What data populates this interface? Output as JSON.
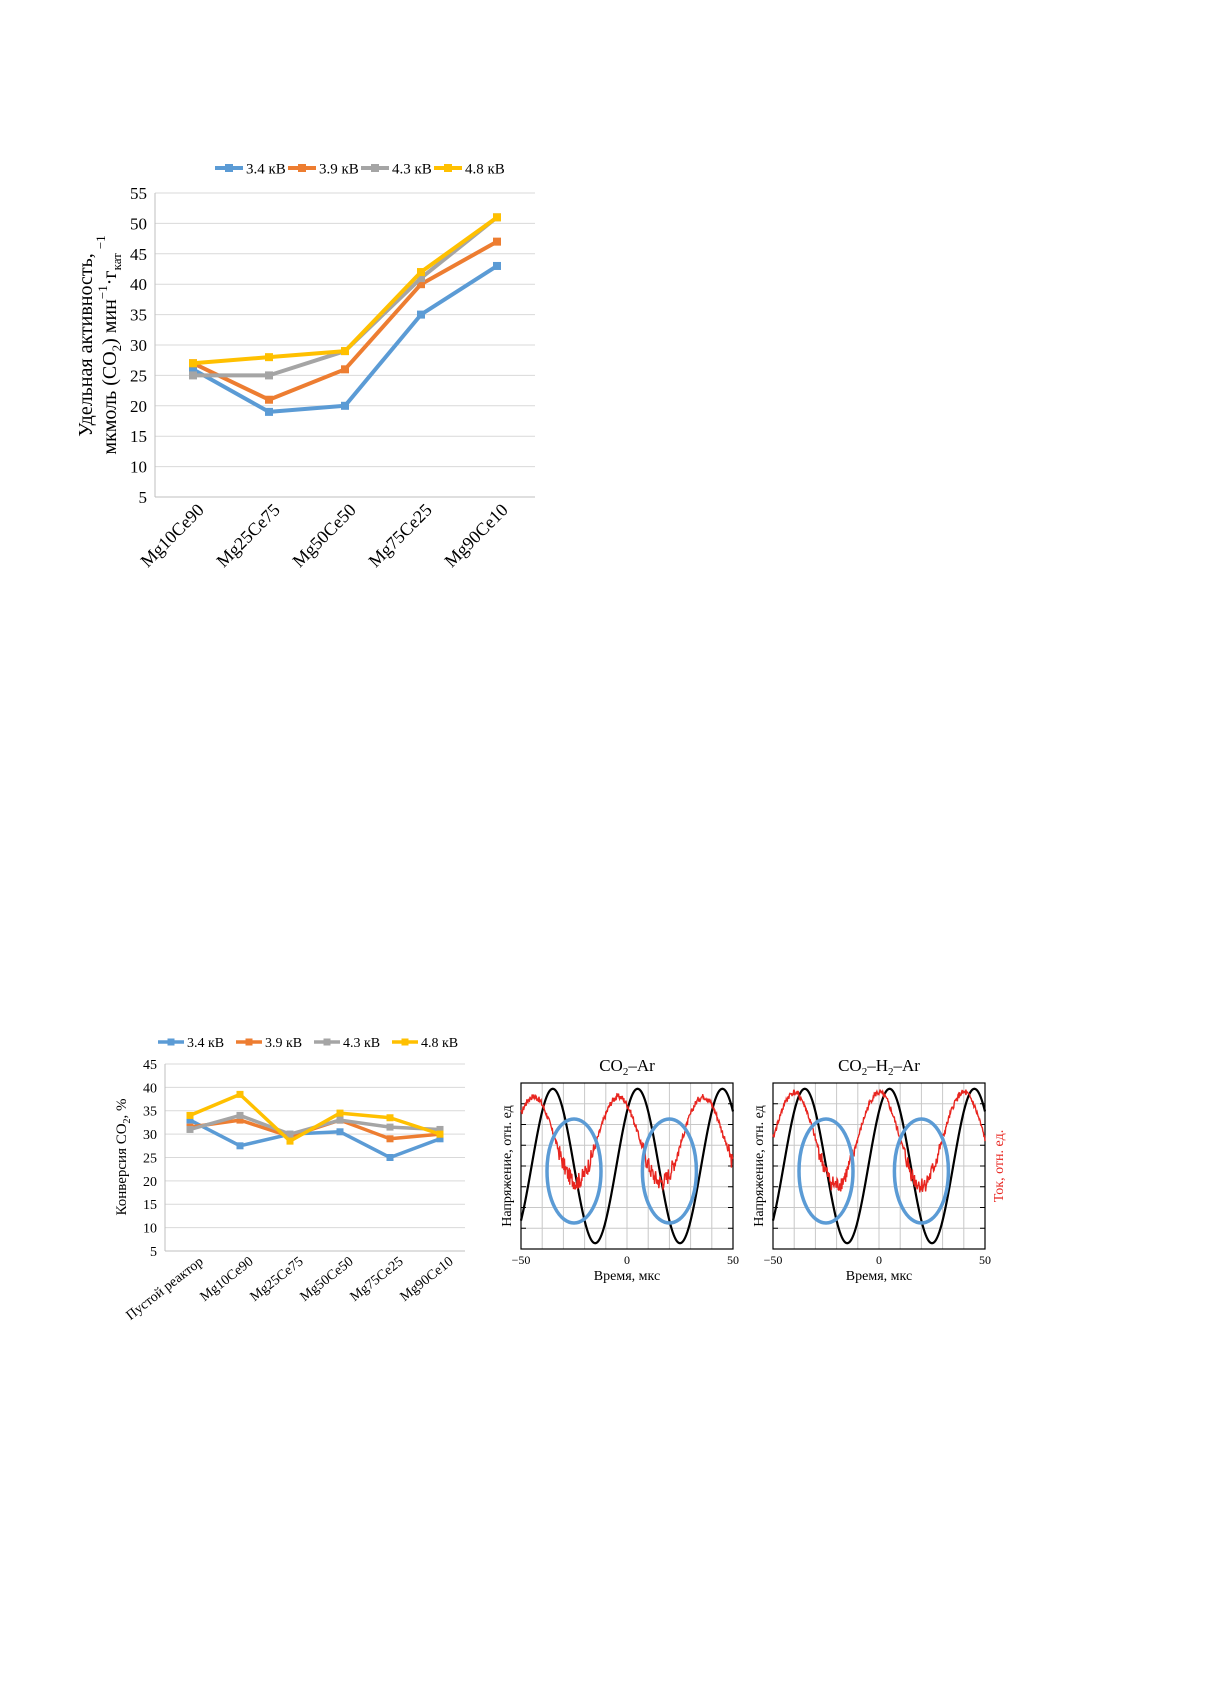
{
  "chart_data": [
    {
      "id": "activity",
      "type": "line",
      "title": "",
      "xlabel": "",
      "ylabel_line1": "Удельная активность,",
      "ylabel_line2_pre": "мкмоль (CO",
      "ylabel_line2_sub": "2",
      "ylabel_line2_post": ") мин",
      "ylabel_sup1": "−1",
      "ylabel_mid": "·г",
      "ylabel_sub2": "кат",
      "ylabel_sup2": "−1",
      "ylim": [
        5,
        55
      ],
      "yticks": [
        5,
        10,
        15,
        20,
        25,
        30,
        35,
        40,
        45,
        50,
        55
      ],
      "grid": true,
      "legend_position": "top",
      "categories": [
        "Mg10Ce90",
        "Mg25Ce75",
        "Mg50Ce50",
        "Mg75Ce25",
        "Mg90Ce10"
      ],
      "series": [
        {
          "name": "3.4 кВ",
          "color": "#5b9bd5",
          "values": [
            26,
            19,
            20,
            35,
            43
          ]
        },
        {
          "name": "3.9 кВ",
          "color": "#ed7d31",
          "values": [
            27,
            21,
            26,
            40,
            47
          ]
        },
        {
          "name": "4.3 кВ",
          "color": "#a5a5a5",
          "values": [
            25,
            25,
            29,
            41,
            51
          ]
        },
        {
          "name": "4.8 кВ",
          "color": "#ffc000",
          "values": [
            27,
            28,
            29,
            42,
            51
          ]
        }
      ]
    },
    {
      "id": "conversion",
      "type": "line",
      "title": "",
      "xlabel": "",
      "ylabel_pre": "Конверсия CO",
      "ylabel_sub": "2",
      "ylabel_post": ", %",
      "ylim": [
        5,
        45
      ],
      "yticks": [
        5,
        10,
        15,
        20,
        25,
        30,
        35,
        40,
        45
      ],
      "grid": true,
      "legend_position": "top",
      "categories": [
        "Пустой реактор",
        "Mg10Ce90",
        "Mg25Ce75",
        "Mg50Ce50",
        "Mg75Ce25",
        "Mg90Ce10"
      ],
      "series": [
        {
          "name": "3.4 кВ",
          "color": "#5b9bd5",
          "values": [
            33,
            27.5,
            30,
            30.5,
            25,
            29
          ]
        },
        {
          "name": "3.9 кВ",
          "color": "#ed7d31",
          "values": [
            31.5,
            33,
            29.5,
            33,
            29,
            30
          ]
        },
        {
          "name": "4.3 кВ",
          "color": "#a5a5a5",
          "values": [
            31,
            34,
            30,
            33,
            31.5,
            31
          ]
        },
        {
          "name": "4.8 кВ",
          "color": "#ffc000",
          "values": [
            34,
            38.5,
            28.5,
            34.5,
            33.5,
            30
          ]
        }
      ]
    },
    {
      "id": "osc_co2_ar",
      "type": "line",
      "title_pre": "CO",
      "title_sub": "2",
      "title_post": "–Ar",
      "xlabel": "Время, мкс",
      "ylabel_left": "Напряжение, отн. ед",
      "xlim": [
        -50,
        50
      ],
      "xticks": [
        -50,
        0,
        50
      ],
      "grid": true,
      "series": [
        {
          "name": "voltage",
          "color": "#000000",
          "period": 40,
          "phase": -35,
          "amplitude": 1.0
        },
        {
          "name": "current",
          "color": "#e8251f",
          "period": 40,
          "phase": -44,
          "amplitude": 0.55,
          "noisy_minimum": true
        }
      ],
      "highlights": [
        {
          "x": -25,
          "color": "#5b9bd5"
        },
        {
          "x": 20,
          "color": "#5b9bd5"
        }
      ]
    },
    {
      "id": "osc_co2_h2_ar",
      "type": "line",
      "title_pre": "CO",
      "title_sub1": "2",
      "title_mid": "–H",
      "title_sub2": "2",
      "title_post": "–Ar",
      "xlabel": "Время, мкс",
      "ylabel_left": "Напряжение, отн. ед",
      "ylabel_right": "Ток, отн. ед.",
      "xlim": [
        -50,
        50
      ],
      "xticks": [
        -50,
        0,
        50
      ],
      "grid": true,
      "series": [
        {
          "name": "voltage",
          "color": "#000000",
          "period": 40,
          "phase": -35,
          "amplitude": 1.0
        },
        {
          "name": "current",
          "color": "#e8251f",
          "period": 40,
          "phase": -40,
          "amplitude": 0.6,
          "noisy_minimum": true
        }
      ],
      "highlights": [
        {
          "x": -25,
          "color": "#5b9bd5"
        },
        {
          "x": 20,
          "color": "#5b9bd5"
        }
      ]
    }
  ]
}
